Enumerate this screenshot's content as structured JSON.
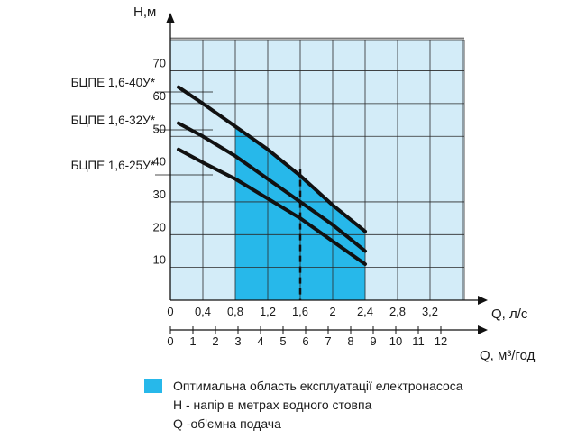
{
  "chart_data": {
    "type": "line",
    "y_title": "H,м",
    "x_title": "Q, л/с",
    "x2_title": "Q, м³/год",
    "x_ticks": [
      "0",
      "0,4",
      "0,8",
      "1,2",
      "1,6",
      "2",
      "2,4",
      "2,8",
      "3,2"
    ],
    "x2_ticks": [
      "0",
      "1",
      "2",
      "3",
      "4",
      "5",
      "6",
      "7",
      "8",
      "9",
      "10",
      "11",
      "12"
    ],
    "y_ticks": [
      "10",
      "20",
      "30",
      "40",
      "50",
      "60",
      "70"
    ],
    "xlim": [
      0,
      3.6
    ],
    "ylim": [
      0,
      80
    ],
    "grid": true,
    "optimal_region": {
      "x_range": [
        0.8,
        2.4
      ],
      "label": "Оптимальна область експлуатації електронасоса",
      "color": "#27b8ea"
    },
    "reference_line": {
      "x": 1.6,
      "style": "dashed"
    },
    "series": [
      {
        "name": "БЦПЕ 1,6-40У*",
        "x": [
          0.1,
          0.4,
          0.8,
          1.2,
          1.6,
          2.0,
          2.4
        ],
        "y": [
          65,
          60,
          53,
          46,
          38,
          29,
          21
        ]
      },
      {
        "name": "БЦПЕ 1,6-32У*",
        "x": [
          0.1,
          0.4,
          0.8,
          1.2,
          1.6,
          2.0,
          2.4
        ],
        "y": [
          54,
          50,
          44,
          37,
          30,
          23,
          15
        ]
      },
      {
        "name": "БЦПЕ 1,6-25У*",
        "x": [
          0.1,
          0.4,
          0.8,
          1.2,
          1.6,
          2.0,
          2.4
        ],
        "y": [
          46,
          42,
          37,
          31,
          25,
          18,
          11
        ]
      }
    ],
    "colors": {
      "background": "#d3ecf8",
      "grid": "#2a2a2a",
      "curve": "#111111"
    }
  },
  "legend": {
    "optimal": "Оптимальна область експлуатації електронасоса",
    "h_note": "H - напір в метрах водного стовпа",
    "q_note": "Q -об'ємна подача"
  }
}
